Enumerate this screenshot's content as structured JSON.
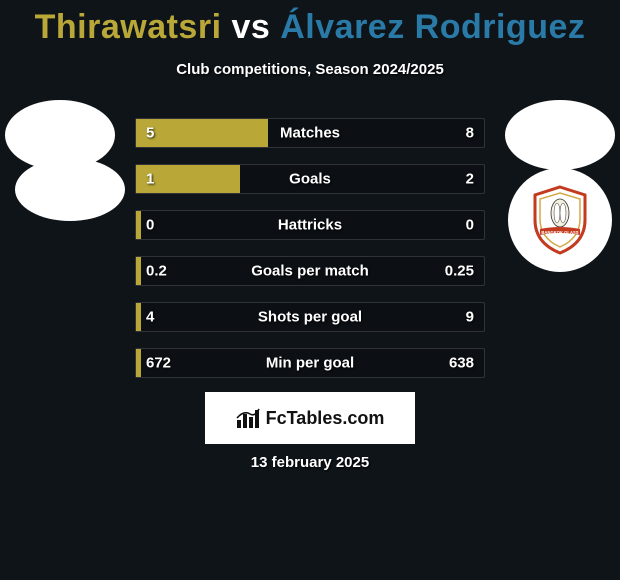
{
  "title": {
    "player1": "Thirawatsri",
    "vs": "vs",
    "player2": "Álvarez Rodriguez",
    "color1": "#b9a838",
    "vs_color": "#ffffff",
    "color2": "#2a7aa8"
  },
  "subtitle": "Club competitions, Season 2024/2025",
  "colors": {
    "left_bar": "#b9a838",
    "right_bar": "#2a7aa8",
    "background": "#0f1419"
  },
  "stats": [
    {
      "label": "Matches",
      "left_val": "5",
      "right_val": "8",
      "left_pct": 38,
      "right_pct": 0
    },
    {
      "label": "Goals",
      "left_val": "1",
      "right_val": "2",
      "left_pct": 30,
      "right_pct": 0
    },
    {
      "label": "Hattricks",
      "left_val": "0",
      "right_val": "0",
      "left_pct": 1.5,
      "right_pct": 0
    },
    {
      "label": "Goals per match",
      "left_val": "0.2",
      "right_val": "0.25",
      "left_pct": 1.5,
      "right_pct": 0
    },
    {
      "label": "Shots per goal",
      "left_val": "4",
      "right_val": "9",
      "left_pct": 1.5,
      "right_pct": 0
    },
    {
      "label": "Min per goal",
      "left_val": "672",
      "right_val": "638",
      "left_pct": 1.5,
      "right_pct": 0
    }
  ],
  "logo": {
    "text": "FcTables.com"
  },
  "date": "13 february 2025",
  "shield": {
    "border": "#c43a1f",
    "fill": "#ffffff",
    "banner": "BANGKOK GLASS",
    "banner_bg": "#c43a1f"
  }
}
